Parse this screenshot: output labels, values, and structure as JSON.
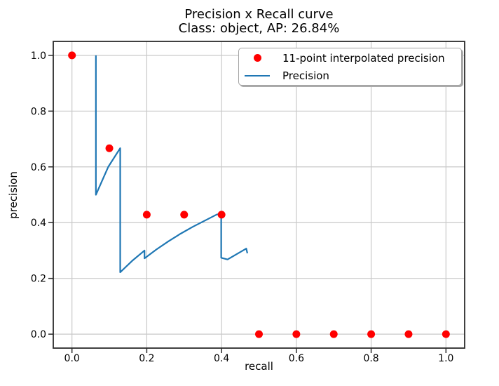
{
  "chart_data": {
    "type": "line",
    "title": "Precision x Recall curve",
    "subtitle": "Class: object, AP: 26.84%",
    "xlabel": "recall",
    "ylabel": "precision",
    "xlim": [
      -0.05,
      1.05
    ],
    "ylim": [
      -0.05,
      1.05
    ],
    "xticks": [
      0.0,
      0.2,
      0.4,
      0.6,
      0.8,
      1.0
    ],
    "xtick_labels": [
      "0.0",
      "0.2",
      "0.4",
      "0.6",
      "0.8",
      "1.0"
    ],
    "yticks": [
      0.0,
      0.2,
      0.4,
      0.6,
      0.8,
      1.0
    ],
    "ytick_labels": [
      "0.0",
      "0.2",
      "0.4",
      "0.6",
      "0.8",
      "1.0"
    ],
    "grid": true,
    "legend_position": "upper right",
    "colors": {
      "scatter": "#ff0000",
      "line": "#1f77b4",
      "grid": "#c9c9c9",
      "spine": "#2b2b2b",
      "background": "#ffffff"
    },
    "series": [
      {
        "name": "11-point interpolated precision",
        "type": "scatter",
        "color": "#ff0000",
        "points": [
          [
            0.0,
            1.0
          ],
          [
            0.1,
            0.6667
          ],
          [
            0.2,
            0.4286
          ],
          [
            0.3,
            0.4286
          ],
          [
            0.4,
            0.4286
          ],
          [
            0.5,
            0.0
          ],
          [
            0.6,
            0.0
          ],
          [
            0.7,
            0.0
          ],
          [
            0.8,
            0.0
          ],
          [
            0.9,
            0.0
          ],
          [
            1.0,
            0.0
          ]
        ]
      },
      {
        "name": "Precision",
        "type": "line",
        "color": "#1f77b4",
        "points": [
          [
            0.064,
            1.0
          ],
          [
            0.064,
            0.5
          ],
          [
            0.097,
            0.6
          ],
          [
            0.129,
            0.667
          ],
          [
            0.129,
            0.222
          ],
          [
            0.161,
            0.263
          ],
          [
            0.194,
            0.3
          ],
          [
            0.194,
            0.272
          ],
          [
            0.226,
            0.304
          ],
          [
            0.258,
            0.333
          ],
          [
            0.29,
            0.36
          ],
          [
            0.323,
            0.385
          ],
          [
            0.355,
            0.407
          ],
          [
            0.387,
            0.429
          ],
          [
            0.399,
            0.432
          ],
          [
            0.399,
            0.274
          ],
          [
            0.416,
            0.268
          ],
          [
            0.466,
            0.307
          ],
          [
            0.469,
            0.29
          ]
        ]
      }
    ]
  }
}
